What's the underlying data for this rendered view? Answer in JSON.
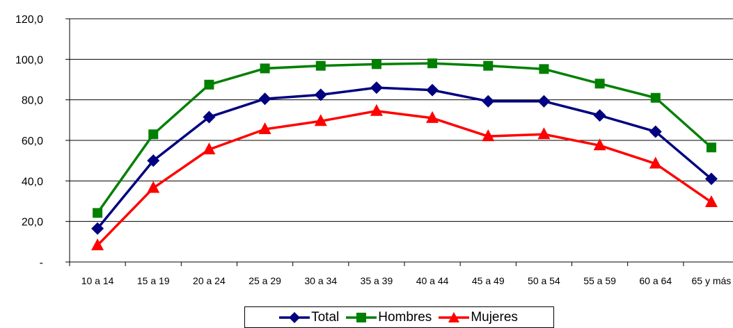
{
  "chart_data": {
    "type": "line",
    "categories": [
      "10 a 14",
      "15 a 19",
      "20 a 24",
      "25 a 29",
      "30 a 34",
      "35 a 39",
      "40 a 44",
      "45 a 49",
      "50 a 54",
      "55 a 59",
      "60 a 64",
      "65 y más"
    ],
    "series": [
      {
        "name": "Total",
        "color": "#000080",
        "marker": "diamond",
        "values": [
          16.5,
          50.0,
          71.5,
          80.5,
          82.5,
          86.0,
          84.8,
          79.3,
          79.3,
          72.3,
          64.3,
          41.0
        ]
      },
      {
        "name": "Hombres",
        "color": "#008000",
        "marker": "square",
        "values": [
          24.2,
          63.0,
          87.5,
          95.5,
          96.8,
          97.6,
          98.0,
          96.8,
          95.2,
          88.0,
          81.0,
          56.5
        ]
      },
      {
        "name": "Mujeres",
        "color": "#ff0000",
        "marker": "triangle",
        "values": [
          8.2,
          36.5,
          55.5,
          65.5,
          69.5,
          74.5,
          71.0,
          62.0,
          63.0,
          57.5,
          48.5,
          29.5
        ]
      }
    ],
    "y_ticks": [
      "-",
      "20,0",
      "40,0",
      "60,0",
      "80,0",
      "100,0",
      "120,0"
    ],
    "ylim": [
      0,
      120
    ],
    "grid": true,
    "legend_position": "bottom"
  }
}
